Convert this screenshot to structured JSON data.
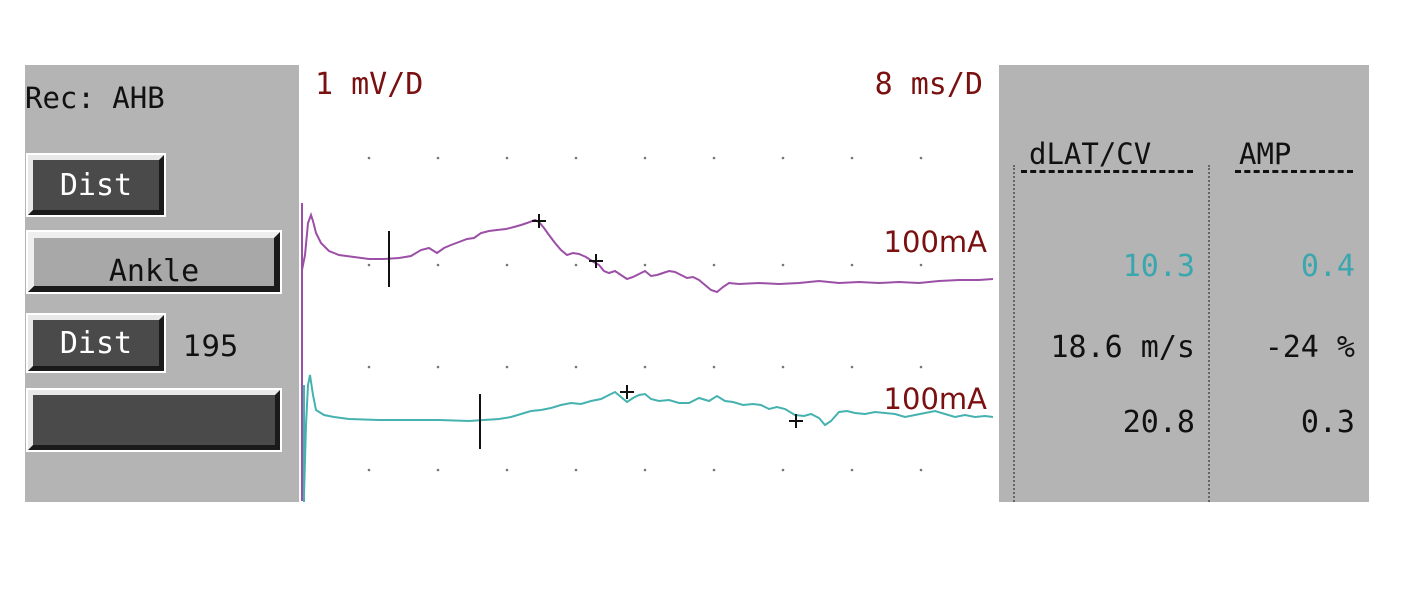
{
  "left_panel": {
    "recording_site": "Rec: AHB",
    "trace1_button": "Dist",
    "trace1_site": "Ankle",
    "trace2_button": "Dist",
    "trace2_distance": "195",
    "trace2_site": ""
  },
  "trace_area": {
    "amplitude_scale": "1 mV/D",
    "time_scale": "8 ms/D",
    "trace1_stimulus": "100mA",
    "trace2_stimulus": "100mA",
    "trace1_color": "#9c4fa6",
    "trace2_color": "#46b2b0",
    "scale_text_color": "#7a1010"
  },
  "results": {
    "headers": {
      "latency_cv": "dLAT/CV",
      "amplitude": "AMP"
    },
    "rows": [
      {
        "latency_cv": "10.3",
        "amplitude": "0.4",
        "color": "#3aa6ad"
      },
      {
        "latency_cv": "18.6 m/s",
        "amplitude": "-24 %",
        "color": "#111111"
      },
      {
        "latency_cv": "20.8",
        "amplitude": "0.3",
        "color": "#111111"
      }
    ]
  }
}
